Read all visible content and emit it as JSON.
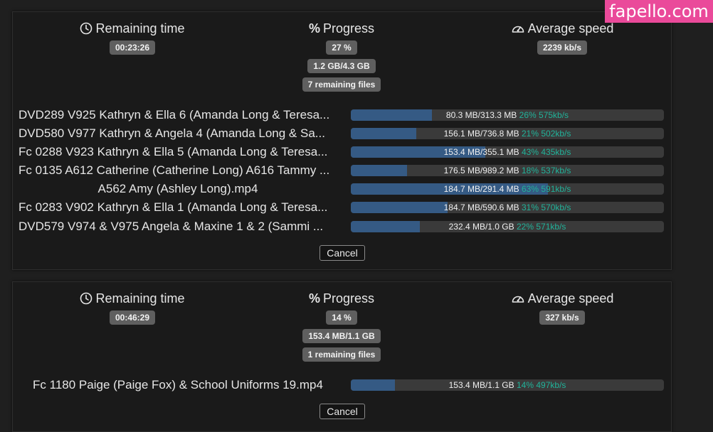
{
  "watermark": "fapello.com",
  "colors": {
    "progress_fill": "#355a84",
    "progress_track": "#3a3a3a",
    "accent": "#21b39a",
    "badge": "#5f5f5f"
  },
  "panels": [
    {
      "stats": {
        "remaining": {
          "label": "Remaining time",
          "icon": "clock-icon",
          "value": "00:23:26"
        },
        "progress": {
          "label": "Progress",
          "icon": "percent-icon",
          "value": "27 %",
          "size": "1.2 GB/4.3 GB",
          "files": "7 remaining files"
        },
        "speed": {
          "label": "Average speed",
          "icon": "speedometer-icon",
          "value": "2239 kb/s"
        }
      },
      "files": [
        {
          "name": "DVD289 V925 Kathryn & Ella 6 (Amanda Long & Teresa...",
          "size": "80.3 MB/313.3 MB",
          "percent": "26%",
          "speed": "575kb/s",
          "fraction": 0.26
        },
        {
          "name": "DVD580 V977 Kathryn & Angela 4 (Amanda Long & Sa...",
          "size": "156.1 MB/736.8 MB",
          "percent": "21%",
          "speed": "502kb/s",
          "fraction": 0.21
        },
        {
          "name": "Fc 0288 V923 Kathryn & Ella 5 (Amanda Long & Teresa...",
          "size": "153.4 MB/355.1 MB",
          "percent": "43%",
          "speed": "435kb/s",
          "fraction": 0.43
        },
        {
          "name": "Fc 0135 A612 Catherine (Catherine Long) A616 Tammy ...",
          "size": "176.5 MB/989.2 MB",
          "percent": "18%",
          "speed": "537kb/s",
          "fraction": 0.18
        },
        {
          "name": "A562 Amy (Ashley Long).mp4",
          "size": "184.7 MB/291.4 MB",
          "percent": "63%",
          "speed": "591kb/s",
          "fraction": 0.63
        },
        {
          "name": "Fc 0283 V902 Kathryn & Ella 1 (Amanda Long & Teresa...",
          "size": "184.7 MB/590.6 MB",
          "percent": "31%",
          "speed": "570kb/s",
          "fraction": 0.31
        },
        {
          "name": "DVD579 V974 & V975 Angela & Maxine 1 & 2 (Sammi ...",
          "size": "232.4 MB/1.0 GB",
          "percent": "22%",
          "speed": "571kb/s",
          "fraction": 0.22
        }
      ],
      "cancel_label": "Cancel"
    },
    {
      "stats": {
        "remaining": {
          "label": "Remaining time",
          "icon": "clock-icon",
          "value": "00:46:29"
        },
        "progress": {
          "label": "Progress",
          "icon": "percent-icon",
          "value": "14 %",
          "size": "153.4 MB/1.1 GB",
          "files": "1 remaining files"
        },
        "speed": {
          "label": "Average speed",
          "icon": "speedometer-icon",
          "value": "327 kb/s"
        }
      },
      "files": [
        {
          "name": "Fc 1180 Paige (Paige Fox) & School Uniforms 19.mp4",
          "size": "153.4 MB/1.1 GB",
          "percent": "14%",
          "speed": "497kb/s",
          "fraction": 0.14
        }
      ],
      "cancel_label": "Cancel"
    }
  ]
}
